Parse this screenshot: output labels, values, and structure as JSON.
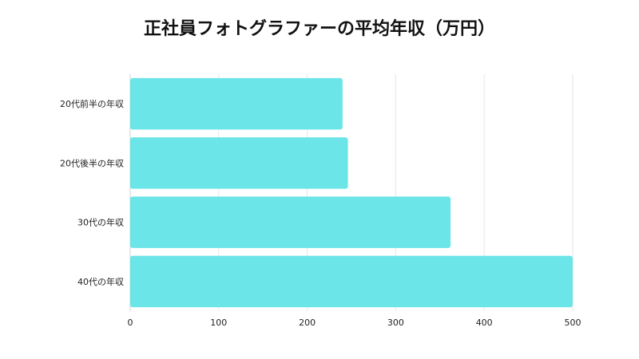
{
  "chart_data": {
    "type": "bar",
    "orientation": "horizontal",
    "title": "正社員フォトグラファーの平均年収（万円）",
    "categories": [
      "20代前半の年収",
      "20代後半の年収",
      "30代の年収",
      "40代の年収"
    ],
    "values": [
      240,
      246,
      362,
      500
    ],
    "xlim": [
      0,
      500
    ],
    "xticks": [
      0,
      100,
      200,
      300,
      400,
      500
    ],
    "grid": true,
    "bar_color": "#6ce5e8"
  }
}
